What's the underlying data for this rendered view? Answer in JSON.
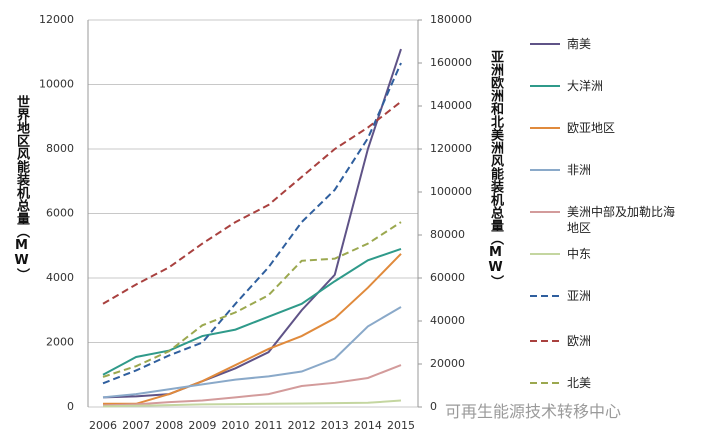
{
  "chart_data": {
    "type": "line",
    "ylabel": "世界地区风能装机总量（MW）",
    "y2label": "亚洲欧洲和北美洲风能装机总量（MW）",
    "watermark": "可再生能源技术转移中心",
    "categories": [
      "2006",
      "2007",
      "2008",
      "2009",
      "2010",
      "2011",
      "2012",
      "2013",
      "2014",
      "2015"
    ],
    "ylim": [
      0,
      12000
    ],
    "yticks": [
      0,
      2000,
      4000,
      6000,
      8000,
      10000,
      12000
    ],
    "y2lim": [
      0,
      180000
    ],
    "y2ticks": [
      0,
      20000,
      40000,
      60000,
      80000,
      100000,
      120000,
      140000,
      160000,
      180000
    ],
    "grid": true,
    "series": [
      {
        "name": "南美",
        "color": "#5f5387",
        "linestyle": "solid",
        "values": [
          300,
          330,
          400,
          800,
          1200,
          1700,
          3000,
          4100,
          8000,
          11100
        ]
      },
      {
        "name": "大洋洲",
        "color": "#2f9a8a",
        "linestyle": "solid",
        "values": [
          1000,
          1550,
          1750,
          2200,
          2400,
          2800,
          3200,
          3900,
          4550,
          4900
        ]
      },
      {
        "name": "欧亚地区",
        "color": "#e08a3c",
        "linestyle": "solid",
        "values": [
          100,
          100,
          400,
          800,
          1300,
          1800,
          2200,
          2750,
          3700,
          4750
        ]
      },
      {
        "name": "非洲",
        "color": "#8aa9c9",
        "linestyle": "solid",
        "values": [
          300,
          400,
          550,
          700,
          850,
          950,
          1100,
          1500,
          2500,
          3100
        ]
      },
      {
        "name": "美洲中部及加勒比海地区",
        "color": "#d39b9b",
        "linestyle": "solid",
        "values": [
          50,
          80,
          150,
          200,
          300,
          400,
          650,
          750,
          900,
          1300
        ]
      },
      {
        "name": "中东",
        "color": "#c4d6a0",
        "linestyle": "solid",
        "values": [
          20,
          40,
          60,
          80,
          90,
          100,
          110,
          120,
          130,
          200
        ]
      },
      {
        "name": "亚洲",
        "color": "#2f5f9e",
        "linestyle": "dashed",
        "axis": "y2",
        "values": [
          11000,
          17000,
          24000,
          30000,
          48000,
          65000,
          86000,
          101000,
          125000,
          160000
        ]
      },
      {
        "name": "欧洲",
        "color": "#a9413f",
        "linestyle": "dashed",
        "axis": "y2",
        "values": [
          48000,
          57000,
          65000,
          76000,
          86000,
          94000,
          107000,
          120000,
          130000,
          142000
        ]
      },
      {
        "name": "北美",
        "color": "#9ba84f",
        "linestyle": "dashed",
        "axis": "y2",
        "values": [
          14000,
          19000,
          26000,
          38000,
          44000,
          52000,
          68000,
          69000,
          76000,
          86000
        ]
      }
    ]
  }
}
